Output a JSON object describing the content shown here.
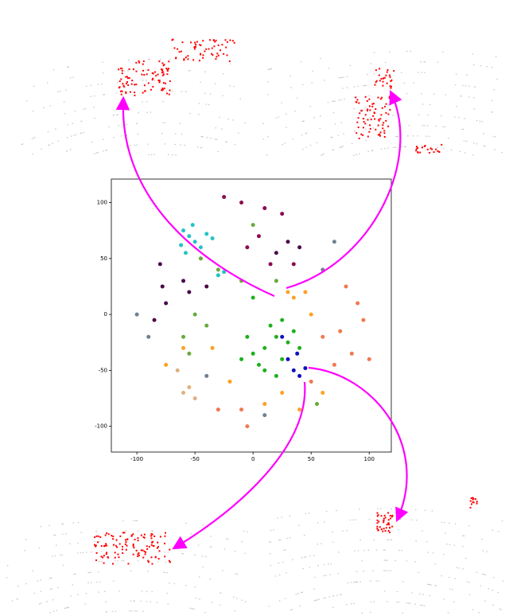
{
  "chart_data": {
    "type": "scatter",
    "xlim": [
      -122,
      119
    ],
    "ylim": [
      -123,
      121
    ],
    "xticks": [
      -100,
      -50,
      0,
      50,
      100
    ],
    "yticks": [
      -100,
      -50,
      0,
      50,
      100
    ],
    "series": [
      {
        "color": "#22c4c4",
        "x": [
          -55,
          -60,
          -50,
          -45,
          -58,
          -40,
          -35,
          -62,
          -30,
          -25,
          -52
        ],
        "y": [
          70,
          75,
          65,
          60,
          55,
          72,
          68,
          62,
          35,
          38,
          80
        ]
      },
      {
        "color": "#4a0a4a",
        "x": [
          -80,
          -85,
          -75,
          -60,
          -55,
          -40,
          30,
          40,
          20,
          -78
        ],
        "y": [
          45,
          -5,
          10,
          30,
          20,
          25,
          65,
          60,
          55,
          25
        ]
      },
      {
        "color": "#8b0a50",
        "x": [
          -25,
          -10,
          10,
          25,
          5,
          -5,
          35,
          15
        ],
        "y": [
          105,
          100,
          95,
          90,
          70,
          60,
          45,
          45
        ]
      },
      {
        "color": "#6aaa3a",
        "x": [
          -45,
          -30,
          -50,
          -60,
          -40,
          0,
          20,
          -10,
          -55,
          55
        ],
        "y": [
          50,
          40,
          0,
          -20,
          -10,
          80,
          30,
          30,
          -35,
          -80
        ]
      },
      {
        "color": "#1eb01e",
        "x": [
          10,
          20,
          25,
          5,
          15,
          30,
          0,
          -5,
          35,
          10,
          20,
          25,
          0,
          -10,
          40
        ],
        "y": [
          -30,
          -20,
          -40,
          -45,
          -10,
          -25,
          -35,
          -20,
          -15,
          -50,
          -55,
          -5,
          15,
          -40,
          -30
        ]
      },
      {
        "color": "#ffa020",
        "x": [
          30,
          35,
          45,
          50,
          -75,
          -60,
          -35,
          10,
          40,
          60,
          -20,
          25
        ],
        "y": [
          20,
          15,
          20,
          0,
          -45,
          -30,
          -30,
          -80,
          -85,
          -70,
          -60,
          -70
        ]
      },
      {
        "color": "#f07850",
        "x": [
          80,
          90,
          95,
          85,
          100,
          70,
          60,
          75,
          -5,
          -30,
          -10,
          50
        ],
        "y": [
          25,
          10,
          -5,
          -35,
          -40,
          -45,
          -20,
          -15,
          -100,
          -85,
          -85,
          -60
        ]
      },
      {
        "color": "#e0b080",
        "x": [
          -55,
          -60,
          -65,
          -50
        ],
        "y": [
          -65,
          -70,
          -50,
          -75
        ]
      },
      {
        "color": "#708090",
        "x": [
          70,
          -100,
          -90,
          60,
          -40,
          10
        ],
        "y": [
          65,
          0,
          -20,
          40,
          -55,
          -90
        ]
      },
      {
        "color": "#1010c0",
        "x": [
          35,
          40,
          45,
          30,
          38,
          25
        ],
        "y": [
          -50,
          -55,
          -48,
          -40,
          -35,
          -20
        ]
      }
    ]
  }
}
